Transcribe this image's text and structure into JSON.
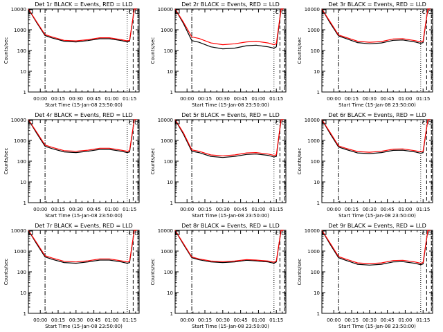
{
  "figure": {
    "xlabel": "Start Time (15-Jan-08 23:50:00)",
    "ylabel": "Counts/sec",
    "xtick_labels": [
      "00:00",
      "00:15",
      "00:30",
      "00:45",
      "01:00",
      "01:15"
    ],
    "ytick_labels": [
      "1",
      "10",
      "100",
      "1000",
      "10000"
    ]
  },
  "colors": {
    "events": "#000000",
    "lld": "#ff0000",
    "axes": "#000000",
    "background": "#ffffff"
  },
  "chart_data": [
    {
      "type": "line",
      "title": "Det 1r BLACK = Events, RED = LLD",
      "xlabel": "Start Time (15-Jan-08 23:50:00)",
      "ylabel": "Counts/sec",
      "xlim": [
        "23:50",
        "01:23"
      ],
      "ylim": [
        1,
        10000
      ],
      "yscale": "log",
      "x": [
        "23:50",
        "23:57",
        "00:04",
        "00:10",
        "00:20",
        "00:30",
        "00:40",
        "00:50",
        "00:58",
        "01:08",
        "01:13",
        "01:15",
        "01:19",
        "01:21"
      ],
      "series": [
        {
          "name": "Events",
          "color": "black",
          "values": [
            10000,
            2200,
            520,
            400,
            280,
            260,
            300,
            370,
            370,
            300,
            260,
            280,
            10000,
            10000
          ]
        },
        {
          "name": "LLD",
          "color": "red",
          "values": [
            10000,
            2400,
            580,
            450,
            310,
            290,
            330,
            410,
            410,
            330,
            290,
            310,
            10000,
            10000
          ]
        }
      ],
      "markers": [
        "C",
        "O"
      ]
    },
    {
      "type": "line",
      "title": "Det 2r BLACK = Events, RED = LLD",
      "xlabel": "Start Time (15-Jan-08 23:50:00)",
      "ylabel": "Counts/sec",
      "xlim": [
        "23:50",
        "01:23"
      ],
      "ylim": [
        1,
        10000
      ],
      "yscale": "log",
      "x": [
        "23:50",
        "23:57",
        "00:04",
        "00:10",
        "00:20",
        "00:30",
        "00:40",
        "00:50",
        "00:58",
        "01:08",
        "01:13",
        "01:15",
        "01:19",
        "01:21"
      ],
      "series": [
        {
          "name": "Events",
          "color": "black",
          "values": [
            10000,
            2000,
            300,
            250,
            150,
            120,
            130,
            170,
            180,
            150,
            130,
            150,
            10000,
            10000
          ]
        },
        {
          "name": "LLD",
          "color": "red",
          "values": [
            10000,
            2300,
            450,
            380,
            230,
            190,
            210,
            260,
            280,
            230,
            190,
            210,
            10000,
            10000
          ]
        }
      ],
      "markers": [
        "C",
        "O"
      ]
    },
    {
      "type": "line",
      "title": "Det 3r BLACK = Events, RED = LLD",
      "xlabel": "Start Time (15-Jan-08 23:50:00)",
      "ylabel": "Counts/sec",
      "xlim": [
        "23:50",
        "01:23"
      ],
      "ylim": [
        1,
        10000
      ],
      "yscale": "log",
      "x": [
        "23:50",
        "23:57",
        "00:04",
        "00:10",
        "00:20",
        "00:30",
        "00:40",
        "00:50",
        "00:58",
        "01:08",
        "01:13",
        "01:15",
        "01:19",
        "01:21"
      ],
      "series": [
        {
          "name": "Events",
          "color": "black",
          "values": [
            10000,
            2100,
            500,
            380,
            240,
            210,
            230,
            310,
            320,
            260,
            220,
            240,
            10000,
            10000
          ]
        },
        {
          "name": "LLD",
          "color": "red",
          "values": [
            10000,
            2400,
            560,
            430,
            280,
            250,
            270,
            360,
            370,
            300,
            260,
            280,
            10000,
            10000
          ]
        }
      ],
      "markers": [
        "C",
        "O"
      ]
    },
    {
      "type": "line",
      "title": "Det 4r BLACK = Events, RED = LLD",
      "xlabel": "Start Time (15-Jan-08 23:50:00)",
      "ylabel": "Counts/sec",
      "xlim": [
        "23:50",
        "01:23"
      ],
      "ylim": [
        1,
        10000
      ],
      "yscale": "log",
      "x": [
        "23:50",
        "23:57",
        "00:04",
        "00:10",
        "00:20",
        "00:30",
        "00:40",
        "00:50",
        "00:58",
        "01:08",
        "01:13",
        "01:15",
        "01:19",
        "01:21"
      ],
      "series": [
        {
          "name": "Events",
          "color": "black",
          "values": [
            10000,
            2200,
            520,
            400,
            280,
            260,
            300,
            370,
            370,
            300,
            260,
            280,
            10000,
            10000
          ]
        },
        {
          "name": "LLD",
          "color": "red",
          "values": [
            10000,
            2500,
            600,
            460,
            320,
            300,
            340,
            420,
            420,
            340,
            300,
            320,
            10000,
            10000
          ]
        }
      ],
      "markers": [
        "C",
        "O"
      ]
    },
    {
      "type": "line",
      "title": "Det 5r BLACK = Events, RED = LLD",
      "xlabel": "Start Time (15-Jan-08 23:50:00)",
      "ylabel": "Counts/sec",
      "xlim": [
        "23:50",
        "01:23"
      ],
      "ylim": [
        1,
        10000
      ],
      "yscale": "log",
      "x": [
        "23:50",
        "23:57",
        "00:04",
        "00:10",
        "00:20",
        "00:30",
        "00:40",
        "00:50",
        "00:58",
        "01:08",
        "01:13",
        "01:15",
        "01:19",
        "01:21"
      ],
      "series": [
        {
          "name": "Events",
          "color": "black",
          "values": [
            10000,
            2000,
            300,
            260,
            170,
            150,
            170,
            210,
            220,
            190,
            160,
            170,
            10000,
            10000
          ]
        },
        {
          "name": "LLD",
          "color": "red",
          "values": [
            10000,
            2300,
            350,
            300,
            200,
            180,
            200,
            250,
            260,
            220,
            190,
            200,
            10000,
            10000
          ]
        }
      ],
      "markers": [
        "C",
        "O"
      ]
    },
    {
      "type": "line",
      "title": "Det 6r BLACK = Events, RED = LLD",
      "xlabel": "Start Time (15-Jan-08 23:50:00)",
      "ylabel": "Counts/sec",
      "xlim": [
        "23:50",
        "01:23"
      ],
      "ylim": [
        1,
        10000
      ],
      "yscale": "log",
      "x": [
        "23:50",
        "23:57",
        "00:04",
        "00:10",
        "00:20",
        "00:30",
        "00:40",
        "00:50",
        "00:58",
        "01:08",
        "01:13",
        "01:15",
        "01:19",
        "01:21"
      ],
      "series": [
        {
          "name": "Events",
          "color": "black",
          "values": [
            10000,
            2100,
            480,
            370,
            250,
            230,
            260,
            330,
            340,
            280,
            240,
            260,
            10000,
            10000
          ]
        },
        {
          "name": "LLD",
          "color": "red",
          "values": [
            10000,
            2400,
            540,
            420,
            290,
            270,
            300,
            380,
            390,
            320,
            280,
            300,
            10000,
            10000
          ]
        }
      ],
      "markers": [
        "C",
        "O"
      ]
    },
    {
      "type": "line",
      "title": "Det 7r BLACK = Events, RED = LLD",
      "xlabel": "Start Time (15-Jan-08 23:50:00)",
      "ylabel": "Counts/sec",
      "xlim": [
        "23:50",
        "01:23"
      ],
      "ylim": [
        1,
        10000
      ],
      "yscale": "log",
      "x": [
        "23:50",
        "23:57",
        "00:04",
        "00:10",
        "00:20",
        "00:30",
        "00:40",
        "00:50",
        "00:58",
        "01:08",
        "01:13",
        "01:15",
        "01:19",
        "01:21"
      ],
      "series": [
        {
          "name": "Events",
          "color": "black",
          "values": [
            10000,
            2200,
            520,
            400,
            280,
            260,
            300,
            370,
            370,
            300,
            260,
            280,
            10000,
            10000
          ]
        },
        {
          "name": "LLD",
          "color": "red",
          "values": [
            10000,
            2500,
            600,
            460,
            320,
            300,
            340,
            420,
            420,
            340,
            300,
            320,
            10000,
            10000
          ]
        }
      ],
      "markers": [
        "C",
        "O"
      ]
    },
    {
      "type": "line",
      "title": "Det 8r BLACK = Events, RED = LLD",
      "xlabel": "Start Time (15-Jan-08 23:50:00)",
      "ylabel": "Counts/sec",
      "xlim": [
        "23:50",
        "01:23"
      ],
      "ylim": [
        1,
        10000
      ],
      "yscale": "log",
      "x": [
        "23:50",
        "23:57",
        "00:04",
        "00:10",
        "00:20",
        "00:30",
        "00:40",
        "00:50",
        "00:58",
        "01:08",
        "01:13",
        "01:15",
        "01:19",
        "01:21"
      ],
      "series": [
        {
          "name": "Events",
          "color": "black",
          "values": [
            10000,
            2100,
            480,
            380,
            300,
            280,
            300,
            360,
            340,
            300,
            260,
            300,
            10000,
            10000
          ]
        },
        {
          "name": "LLD",
          "color": "red",
          "values": [
            10000,
            2300,
            520,
            420,
            330,
            310,
            330,
            390,
            370,
            330,
            290,
            330,
            10000,
            10000
          ]
        }
      ],
      "markers": [
        "C",
        "O"
      ]
    },
    {
      "type": "line",
      "title": "Det 9r BLACK = Events, RED = LLD",
      "xlabel": "Start Time (15-Jan-08 23:50:00)",
      "ylabel": "Counts/sec",
      "xlim": [
        "23:50",
        "01:23"
      ],
      "ylim": [
        1,
        10000
      ],
      "yscale": "log",
      "x": [
        "23:50",
        "23:57",
        "00:04",
        "00:10",
        "00:20",
        "00:30",
        "00:40",
        "00:50",
        "00:58",
        "01:08",
        "01:13",
        "01:15",
        "01:19",
        "01:21"
      ],
      "series": [
        {
          "name": "Events",
          "color": "black",
          "values": [
            10000,
            2100,
            480,
            360,
            230,
            210,
            230,
            300,
            310,
            260,
            220,
            240,
            10000,
            10000
          ]
        },
        {
          "name": "LLD",
          "color": "red",
          "values": [
            10000,
            2400,
            540,
            410,
            270,
            250,
            270,
            350,
            360,
            300,
            260,
            280,
            10000,
            10000
          ]
        }
      ],
      "markers": [
        "C",
        "O"
      ]
    }
  ]
}
